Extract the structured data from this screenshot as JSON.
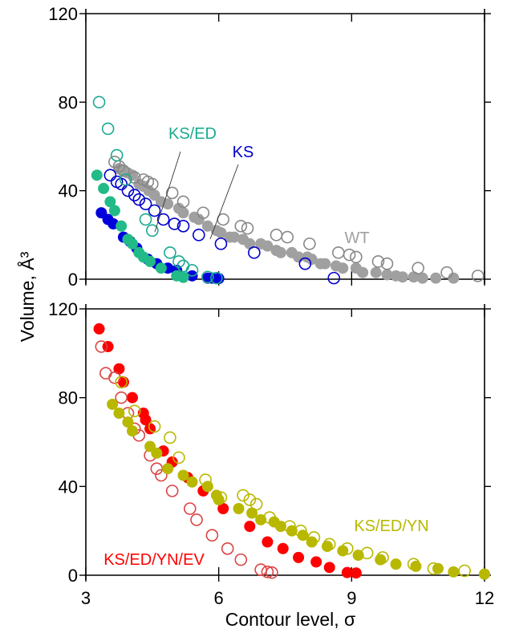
{
  "chart_data": {
    "type": "scatter",
    "xlabel": "Contour level, σ",
    "ylabel": "Volume, Å³",
    "xlim": [
      3,
      12
    ],
    "x_ticks": [
      "3",
      "6",
      "9",
      "12"
    ],
    "grid": false,
    "panels": [
      {
        "id": "top",
        "ylim": [
          0,
          120
        ],
        "y_ticks": [
          "0",
          "40",
          "80",
          "120"
        ],
        "show_x_tick_labels": false,
        "series": [
          {
            "name": "WT",
            "label": "WT",
            "color": "#a0a0a0",
            "filled": true,
            "x": [
              3.75,
              3.85,
              3.95,
              4.05,
              4.2,
              4.3,
              4.42,
              4.55,
              4.7,
              4.85,
              5.1,
              5.2,
              5.45,
              5.55,
              5.75,
              5.95,
              6.05,
              6.25,
              6.35,
              6.55,
              6.7,
              6.95,
              7.1,
              7.3,
              7.4,
              7.65,
              7.8,
              8.0,
              8.1,
              8.3,
              8.4,
              8.65,
              8.8,
              9.1,
              9.25,
              9.55,
              9.8,
              10.0,
              10.15,
              10.4,
              10.6,
              10.9,
              11.3
            ],
            "y": [
              50,
              49,
              48,
              47,
              43,
              42,
              40,
              38,
              35,
              34,
              32,
              30,
              28,
              27,
              24,
              22,
              21,
              19,
              19,
              18,
              16,
              16,
              15,
              13,
              12,
              12,
              10,
              10,
              9,
              7,
              7,
              6,
              5,
              5,
              3,
              3,
              2,
              1.5,
              1,
              1,
              0.5,
              0.5,
              0.5
            ]
          },
          {
            "name": "WT (open)",
            "label": "",
            "color": "#888888",
            "filled": false,
            "x": [
              3.65,
              3.75,
              3.85,
              4.1,
              4.3,
              4.4,
              4.5,
              4.95,
              5.2,
              5.65,
              6.1,
              6.5,
              6.65,
              7.3,
              7.55,
              8.05,
              8.7,
              8.95,
              9.1,
              9.6,
              9.8,
              10.5,
              11.15,
              11.85
            ],
            "y": [
              53,
              51,
              49,
              46,
              45,
              44,
              43,
              39,
              35,
              30,
              27,
              24,
              23,
              20,
              19,
              16,
              12,
              11,
              10,
              8,
              7,
              5,
              3,
              1.5
            ]
          },
          {
            "name": "KS",
            "label": "KS",
            "color": "#0000cc",
            "filled": false,
            "x": [
              3.55,
              3.7,
              3.8,
              3.95,
              4.1,
              4.2,
              4.35,
              4.55,
              4.75,
              5.0,
              5.2,
              5.55,
              6.05,
              6.8,
              7.95,
              8.6
            ],
            "y": [
              47,
              44,
              43,
              40,
              38,
              36,
              34,
              31,
              27,
              25,
              24,
              20,
              16,
              12,
              7,
              0.5
            ]
          },
          {
            "name": "KS (filled)",
            "label": "",
            "color": "#0000dd",
            "filled": true,
            "x": [
              3.35,
              3.5,
              3.62,
              3.85,
              4.0,
              4.15,
              4.4,
              4.6,
              4.85,
              5.05,
              5.4,
              5.75,
              5.85,
              6.0
            ],
            "y": [
              30,
              27,
              25,
              19,
              17,
              14,
              9,
              7,
              5,
              4,
              1.5,
              0.5,
              0.5,
              0.3
            ]
          },
          {
            "name": "KS/ED",
            "label": "KS/ED",
            "color": "#1aaa90",
            "filled": false,
            "x": [
              3.3,
              3.5,
              3.7,
              3.9,
              4.35,
              4.5,
              4.9,
              5.1,
              5.2,
              5.4,
              5.75,
              5.95
            ],
            "y": [
              80,
              68,
              56,
              45,
              27,
              22,
              12,
              8,
              6,
              4,
              1,
              0.5
            ]
          },
          {
            "name": "KS/ED (filled)",
            "label": "",
            "color": "#22bb88",
            "filled": true,
            "x": [
              3.25,
              3.4,
              3.55,
              3.65,
              3.8,
              3.95,
              4.05,
              4.2,
              4.3,
              4.45,
              4.7,
              5.05,
              5.2
            ],
            "y": [
              47,
              41,
              35,
              31,
              24,
              18,
              16,
              12,
              10,
              8,
              5,
              1.5,
              0.8
            ]
          }
        ]
      },
      {
        "id": "bottom",
        "ylim": [
          0,
          120
        ],
        "y_ticks": [
          "0",
          "40",
          "80",
          "120"
        ],
        "show_x_tick_labels": true,
        "series": [
          {
            "name": "KS/ED/YN/EV",
            "label": "KS/ED/YN/EV",
            "color": "#ff0000",
            "filled": true,
            "x": [
              3.3,
              3.5,
              3.75,
              3.85,
              4.05,
              4.3,
              4.35,
              4.45,
              4.75,
              4.95,
              5.3,
              5.65,
              6.1,
              6.7,
              7.1,
              7.45,
              7.8,
              8.2,
              8.5,
              8.9,
              9.1
            ],
            "y": [
              111,
              103,
              93,
              87,
              80,
              73,
              70,
              66,
              56,
              51,
              44,
              38,
              30,
              22,
              15,
              12,
              8,
              6,
              3.5,
              1.2,
              1
            ]
          },
          {
            "name": "KS/ED/YN/EV (open)",
            "label": "",
            "color": "#dd4444",
            "filled": false,
            "x": [
              3.35,
              3.45,
              3.65,
              3.8,
              3.95,
              4.1,
              4.2,
              4.45,
              4.6,
              4.7,
              4.95,
              5.35,
              5.5,
              5.85,
              6.2,
              6.5,
              6.95,
              7.1,
              7.2
            ],
            "y": [
              103,
              91,
              89,
              80,
              73,
              66,
              63,
              54,
              48,
              45,
              38,
              30,
              25,
              18,
              12,
              7,
              2.5,
              1.5,
              1.2
            ]
          },
          {
            "name": "KS/ED/YN",
            "label": "KS/ED/YN",
            "color": "#b8b800",
            "filled": true,
            "x": [
              3.6,
              3.75,
              3.95,
              4.05,
              4.45,
              4.6,
              4.85,
              5.2,
              5.4,
              5.75,
              5.95,
              6.0,
              6.45,
              6.75,
              6.95,
              7.25,
              7.4,
              7.65,
              7.9,
              8.1,
              8.45,
              8.8,
              9.15,
              9.65,
              10.0,
              10.45,
              10.95,
              11.3,
              12.0
            ],
            "y": [
              77,
              73,
              69,
              65,
              58,
              55,
              48,
              45,
              42,
              40,
              36,
              34,
              30,
              28,
              25,
              24,
              22,
              20,
              18,
              15,
              13,
              11,
              9,
              7,
              5,
              4,
              3,
              1.5,
              0.5
            ]
          },
          {
            "name": "KS/ED/YN (open)",
            "label": "",
            "color": "#b8b800",
            "filled": false,
            "x": [
              3.8,
              4.1,
              4.55,
              4.9,
              5.1,
              5.7,
              6.05,
              6.55,
              6.7,
              6.85,
              7.15,
              7.6,
              7.85,
              8.15,
              8.5,
              8.9,
              9.35,
              9.7,
              10.4,
              10.85,
              11.55
            ],
            "y": [
              87,
              74,
              67,
              62,
              53,
              43,
              35,
              36,
              34,
              32,
              26,
              22,
              20,
              17,
              14,
              12,
              10,
              8,
              5,
              3,
              2
            ]
          }
        ]
      }
    ]
  }
}
